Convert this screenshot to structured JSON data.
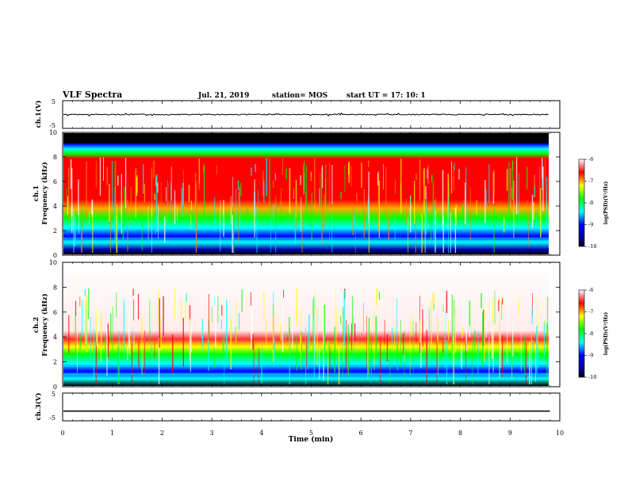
{
  "header": {
    "title": "VLF Spectra",
    "date": "Jul. 21, 2019",
    "station": "station= MOS",
    "start": "start  UT =   17: 10: 1"
  },
  "chart_data": [
    {
      "type": "line",
      "panel": "ch1-waveform",
      "ylabel": "ch.1(V)",
      "ylim": [
        -5,
        5
      ],
      "yticks": [
        "5",
        "-5"
      ],
      "note": "flat trace with small spikes near 0 V"
    },
    {
      "type": "heatmap",
      "panel": "ch1-spectrogram",
      "ylabel": "ch.1\nFrequency (kHz)",
      "ylabel_top": "ch.1",
      "ylabel_bottom": "Frequency (kHz)",
      "ylim": [
        0,
        10
      ],
      "yticks": [
        "0",
        "2",
        "4",
        "6",
        "8",
        "10"
      ],
      "colorbar": {
        "label": "log(PSD)(V²/Hz)",
        "range": [
          -10,
          -6
        ],
        "ticks": [
          "-6",
          "-7",
          "-8",
          "-9",
          "-10"
        ],
        "colors": [
          "#000080",
          "#0000ff",
          "#00ffff",
          "#00ff00",
          "#ffff00",
          "#ff0000",
          "#ffffff"
        ]
      },
      "description_bands": [
        {
          "from_khz": 9.0,
          "to_khz": 10.0,
          "level": "no data (black)"
        },
        {
          "from_khz": 4.0,
          "to_khz": 8.0,
          "level": "high PSD (red)"
        },
        {
          "from_khz": 0.3,
          "to_khz": 3.5,
          "level": "low PSD (blue/cyan)"
        }
      ]
    },
    {
      "type": "heatmap",
      "panel": "ch2-spectrogram",
      "ylabel_top": "ch.2",
      "ylabel_bottom": "Frequency (kHz)",
      "ylim": [
        0,
        10
      ],
      "yticks": [
        "0",
        "2",
        "4",
        "6",
        "8",
        "10"
      ],
      "colorbar": {
        "label": "log(PSD)(V²/Hz)",
        "range": [
          -10,
          -6
        ],
        "ticks": [
          "-6",
          "-7",
          "-8",
          "-9",
          "-10"
        ]
      }
    },
    {
      "type": "line",
      "panel": "ch3-waveform",
      "ylabel": "ch.3(V)",
      "ylim": [
        -5,
        5
      ],
      "yticks": [
        "5",
        "-5"
      ],
      "y": [
        -1.5,
        -1.5
      ],
      "x": [
        0,
        9.8
      ]
    }
  ],
  "xaxis": {
    "label": "Time (min)",
    "ticks": [
      "0",
      "1",
      "2",
      "3",
      "4",
      "5",
      "6",
      "7",
      "8",
      "9",
      "10"
    ],
    "range": [
      0,
      10
    ]
  }
}
